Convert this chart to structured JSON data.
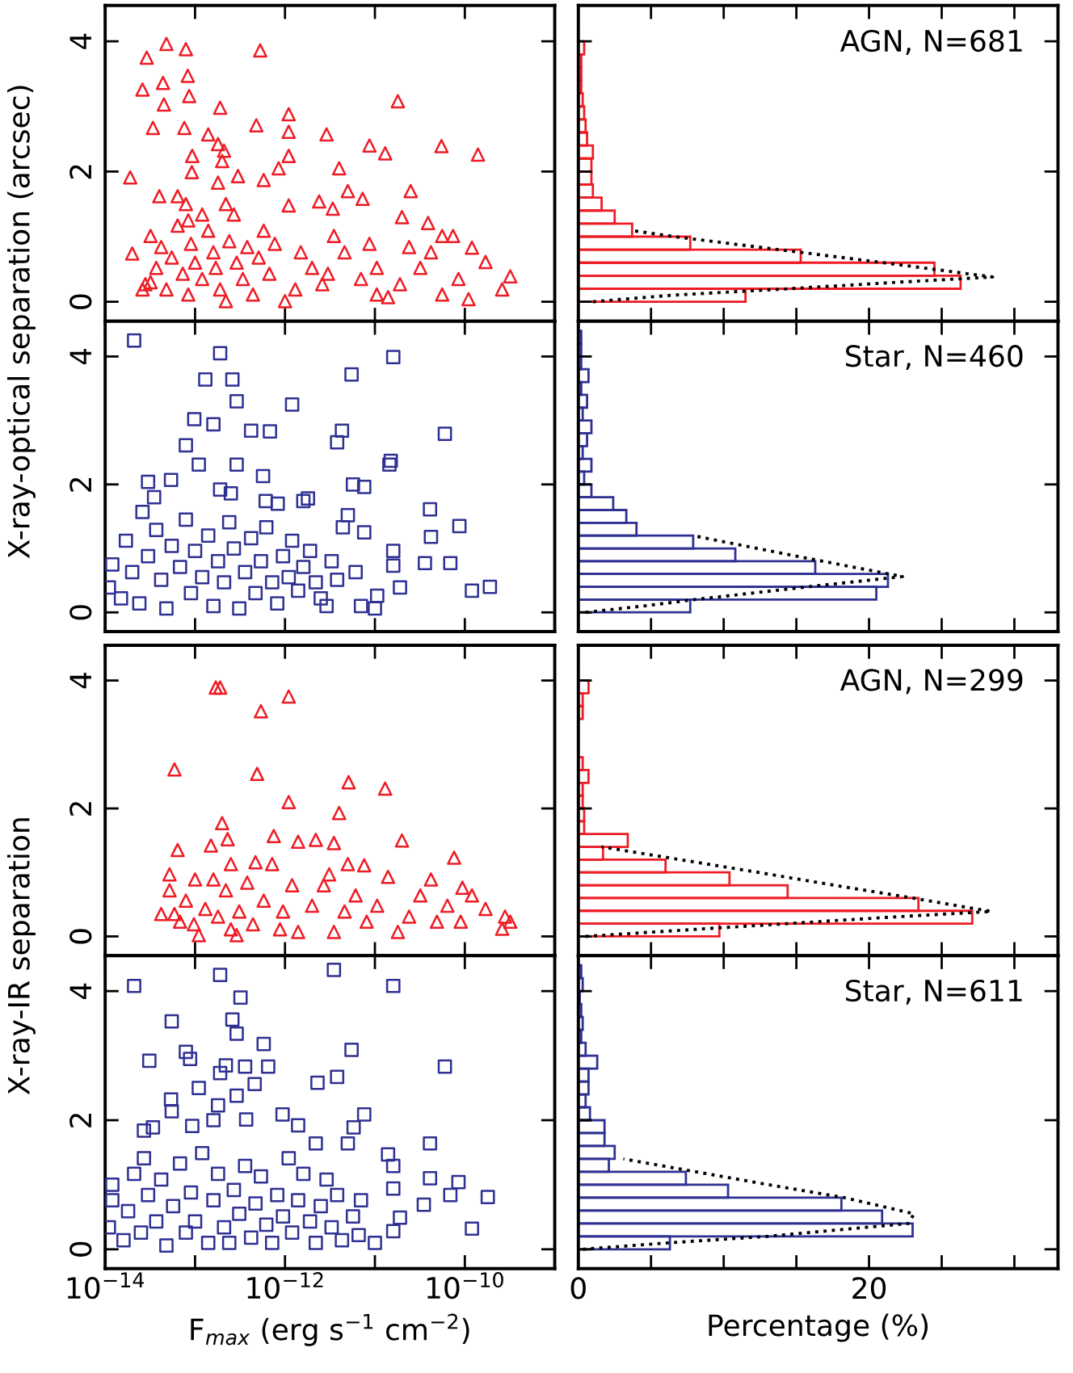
{
  "chart_data": [
    {
      "type": "scatter",
      "log": "x",
      "marker": "triangle",
      "color": "#ee1c25",
      "ylabel": "X-ray-optical separation (arcsec)",
      "tick_labels": "y",
      "xlim": [
        1e-14,
        1e-09
      ],
      "xticks": [
        {
          "value": 1e-14,
          "label": null
        },
        {
          "value": 1e-13,
          "label": null
        },
        {
          "value": 1e-12,
          "label": null
        },
        {
          "value": 1e-11,
          "label": null
        },
        {
          "value": 1e-10,
          "label": null
        },
        {
          "value": 1e-09,
          "label": null
        }
      ],
      "ylim": [
        -0.3,
        4.55
      ],
      "yticks": [
        0,
        2,
        4
      ],
      "x": [
        1.9e-14,
        2e-14,
        2.9e-14,
        2.6e-14,
        3.4e-14,
        4.4e-14,
        4.8e-14,
        4.5e-14,
        7.9e-14,
        8.3e-14,
        8.6e-14,
        7.6e-14,
        9.3e-14,
        9.2e-14,
        4e-14,
        1.4e-13,
        1.9e-13,
        1.8e-13,
        2.1e-13,
        2e-13,
        1.8e-13,
        3e-13,
        4.8e-13,
        5.3e-13,
        5.8e-13,
        8.5e-13,
        1.1e-12,
        1.1e-12,
        1.1e-12,
        1.1e-12,
        2.9e-12,
        4e-12,
        5e-12,
        7.3e-12,
        8.7e-12,
        1.3e-11,
        1.8e-11,
        2.5e-11,
        5.5e-11,
        1.4e-10,
        2.4e-12,
        3.4e-12,
        2e-11,
        3.9e-11,
        1.7e-10,
        3.2e-10,
        2.6e-10,
        1.1e-10,
        1.2e-10,
        7.4e-11,
        5.6e-11,
        8.5e-11,
        5.6e-11,
        4.2e-11,
        3.2e-11,
        2.4e-11,
        1.9e-11,
        1.4e-11,
        1.05e-11,
        8.7e-12,
        1.05e-11,
        7e-12,
        4.6e-12,
        3.5e-12,
        3e-12,
        2.6e-12,
        2e-12,
        1.5e-12,
        1.3e-12,
        1e-12,
        2.8e-14,
        3.2e-14,
        3.7e-14,
        4.2e-14,
        4.8e-14,
        5.5e-14,
        6.4e-14,
        7.3e-14,
        8.4e-14,
        9e-14,
        1e-13,
        1.2e-13,
        1.4e-13,
        1.6e-13,
        1.7e-13,
        1.9e-13,
        2.2e-13,
        2.4e-13,
        2.7e-13,
        2.9e-13,
        3.4e-13,
        3.8e-13,
        4.4e-13,
        5.1e-13,
        5.8e-13,
        6.7e-13,
        7.7e-13,
        2.2e-13,
        1.2e-13,
        7.9e-14,
        6.4e-14,
        8.4e-14,
        3.2e-14,
        2.6e-14
      ],
      "values": [
        1.91,
        0.74,
        3.75,
        3.26,
        2.67,
        3.36,
        3.96,
        3.03,
        3.88,
        3.47,
        3.16,
        2.67,
        2.24,
        1.99,
        1.62,
        2.57,
        2.98,
        2.42,
        2.32,
        2.16,
        1.83,
        1.93,
        2.71,
        3.86,
        1.87,
        2.05,
        2.24,
        2.61,
        2.88,
        1.48,
        2.57,
        2.05,
        1.7,
        1.58,
        2.4,
        2.28,
        3.08,
        1.7,
        2.39,
        2.26,
        1.54,
        1.43,
        1.3,
        1.21,
        0.61,
        0.39,
        0.19,
        0.04,
        0.83,
        1.01,
        1.01,
        0.35,
        0.11,
        0.76,
        0.52,
        0.84,
        0.27,
        0.07,
        0.11,
        0.89,
        0.52,
        0.35,
        0.76,
        1.01,
        0.43,
        0.27,
        0.52,
        0.76,
        0.19,
        0.01,
        0.27,
        1.01,
        0.52,
        0.84,
        0.19,
        0.68,
        1.17,
        0.43,
        0.11,
        0.89,
        0.6,
        0.35,
        1.09,
        0.76,
        0.52,
        0.19,
        0.01,
        0.93,
        1.34,
        0.6,
        0.35,
        0.84,
        0.11,
        0.68,
        1.09,
        0.43,
        0.89,
        1.5,
        1.34,
        1.5,
        1.62,
        1.25,
        0.3,
        0.19
      ]
    },
    {
      "type": "histogram",
      "orientation": "horizontal",
      "color": "#ee1c25",
      "tick_labels": false,
      "annotations": [
        "AGN, N=681"
      ],
      "xlim": [
        0,
        33
      ],
      "xticks": [
        {
          "value": 0,
          "label": null
        },
        {
          "value": 5,
          "label": null
        },
        {
          "value": 10,
          "label": null
        },
        {
          "value": 15,
          "label": null
        },
        {
          "value": 20,
          "label": null
        },
        {
          "value": 25,
          "label": null
        },
        {
          "value": 30,
          "label": null
        }
      ],
      "ylim": [
        -0.3,
        4.55
      ],
      "yticks": [
        {
          "value": 0,
          "label": null
        },
        {
          "value": 2,
          "label": null
        },
        {
          "value": 4,
          "label": null
        }
      ],
      "bins": [
        0,
        0.2,
        0.4,
        0.6,
        0.8,
        1.0,
        1.2,
        1.4,
        1.6,
        1.8,
        2.0,
        2.2,
        2.4,
        2.6,
        2.8,
        3.0,
        3.2,
        3.4,
        3.6,
        3.8,
        4.0
      ],
      "values": [
        11.5,
        26.3,
        24.5,
        15.3,
        7.7,
        3.7,
        2.5,
        1.6,
        1.0,
        0.9,
        0.9,
        1.0,
        0.6,
        0.5,
        0.4,
        0.3,
        0.2,
        0.2,
        0.2,
        0.4
      ],
      "series": [
        {
          "type": "line",
          "color": "#000000",
          "line_style": "dotted",
          "x": [
            0,
            0.1,
            0.2,
            0.3,
            0.38,
            0.6,
            0.8,
            1.0,
            1.09
          ],
          "values": [
            1,
            6.4,
            14.5,
            22,
            28.5,
            21,
            13.8,
            6.6,
            3.8
          ]
        }
      ]
    },
    {
      "type": "scatter",
      "log": "x",
      "marker": "square",
      "color": "#2e3192",
      "tick_labels": "y",
      "xlim": [
        1e-14,
        1e-09
      ],
      "xticks": [
        {
          "value": 1e-14,
          "label": null
        },
        {
          "value": 1e-13,
          "label": null
        },
        {
          "value": 1e-12,
          "label": null
        },
        {
          "value": 1e-11,
          "label": null
        },
        {
          "value": 1e-10,
          "label": null
        },
        {
          "value": 1e-09,
          "label": null
        }
      ],
      "ylim": [
        -0.3,
        4.55
      ],
      "yticks": [
        0,
        2,
        4
      ],
      "x": [
        2.1e-14,
        1.9e-13,
        2.6e-13,
        1.3e-13,
        2.9e-13,
        1.2e-12,
        9.8e-14,
        1.6e-13,
        4.2e-13,
        6.8e-13,
        7.9e-14,
        1.1e-13,
        2.9e-13,
        5.7e-13,
        5.4e-14,
        1.9e-13,
        2.5e-13,
        6.1e-13,
        8.3e-13,
        1.6e-12,
        5.5e-12,
        3.8e-12,
        4.3e-12,
        1.6e-11,
        1.45e-11,
        1.5e-11,
        5.7e-12,
        7.6e-12,
        6e-11,
        4.1e-11,
        8.7e-11,
        4.2e-11,
        6.9e-11,
        3.6e-11,
        1.9e-10,
        1.2e-10,
        1.6e-11,
        1.6e-11,
        1.9e-11,
        1.06e-11,
        7.6e-12,
        5e-12,
        4.4e-12,
        1.8e-12,
        3e-14,
        2.6e-14,
        3.5e-14,
        1.1e-14,
        1.2e-14,
        1.5e-14,
        1.7e-14,
        2e-14,
        2.4e-14,
        3e-14,
        3.7e-14,
        4.2e-14,
        4.8e-14,
        5.5e-14,
        6.8e-14,
        7.9e-14,
        9e-14,
        1e-13,
        1.2e-13,
        1.4e-13,
        1.6e-13,
        1.8e-13,
        2.1e-13,
        2.4e-13,
        2.7e-13,
        3.1e-13,
        3.6e-13,
        4.2e-13,
        4.7e-13,
        5.4e-13,
        6.2e-13,
        7.2e-13,
        8.2e-13,
        9.5e-13,
        1.1e-12,
        1.2e-12,
        1.4e-12,
        1.6e-12,
        1.9e-12,
        2.2e-12,
        2.5e-12,
        2.9e-12,
        3.3e-12,
        3.8e-12,
        6.1e-12,
        7e-12,
        1e-11
      ],
      "values": [
        4.25,
        4.05,
        3.64,
        3.64,
        3.3,
        3.25,
        3.02,
        2.94,
        2.84,
        2.83,
        2.61,
        2.31,
        2.31,
        2.13,
        2.07,
        1.92,
        1.86,
        1.74,
        1.7,
        1.74,
        3.72,
        2.66,
        2.84,
        3.99,
        2.31,
        2.37,
        2.0,
        1.96,
        2.79,
        1.61,
        1.35,
        1.18,
        0.77,
        0.77,
        0.4,
        0.34,
        0.96,
        0.73,
        0.39,
        0.26,
        1.25,
        1.52,
        1.33,
        1.78,
        2.04,
        1.57,
        1.8,
        0.39,
        0.75,
        0.22,
        1.12,
        0.63,
        0.14,
        0.88,
        1.29,
        0.51,
        0.06,
        1.04,
        0.71,
        1.45,
        0.3,
        0.96,
        0.55,
        1.2,
        0.1,
        0.8,
        0.47,
        1.41,
        1.0,
        0.06,
        0.63,
        1.16,
        0.3,
        0.8,
        1.33,
        0.47,
        0.14,
        0.88,
        0.55,
        1.12,
        0.34,
        0.71,
        0.96,
        0.47,
        0.22,
        0.1,
        0.8,
        0.51,
        0.63,
        0.1,
        0.06
      ]
    },
    {
      "type": "histogram",
      "orientation": "horizontal",
      "color": "#2e3192",
      "tick_labels": false,
      "annotations": [
        "Star, N=460"
      ],
      "xlim": [
        0,
        33
      ],
      "xticks": [
        {
          "value": 0,
          "label": null
        },
        {
          "value": 5,
          "label": null
        },
        {
          "value": 10,
          "label": null
        },
        {
          "value": 15,
          "label": null
        },
        {
          "value": 20,
          "label": null
        },
        {
          "value": 25,
          "label": null
        },
        {
          "value": 30,
          "label": null
        }
      ],
      "ylim": [
        -0.3,
        4.55
      ],
      "yticks": [
        {
          "value": 0,
          "label": null
        },
        {
          "value": 2,
          "label": null
        },
        {
          "value": 4,
          "label": null
        }
      ],
      "bins": [
        0,
        0.2,
        0.4,
        0.6,
        0.8,
        1.0,
        1.2,
        1.4,
        1.6,
        1.8,
        2.0,
        2.2,
        2.4,
        2.6,
        2.8,
        3.0,
        3.2,
        3.4,
        3.6,
        3.8,
        4.0,
        4.2,
        4.4
      ],
      "values": [
        7.7,
        20.5,
        21.3,
        16.3,
        10.8,
        7.9,
        4.0,
        3.3,
        2.4,
        0.9,
        0.4,
        0.9,
        0.3,
        0.6,
        0.9,
        0.3,
        0.6,
        0.2,
        0.7,
        0.2,
        0.2,
        0.2
      ],
      "series": [
        {
          "type": "line",
          "color": "#000000",
          "line_style": "dotted",
          "x": [
            0,
            0.1,
            0.2,
            0.4,
            0.56,
            0.8,
            1.0,
            1.2
          ],
          "values": [
            0.5,
            4.5,
            8,
            15.8,
            22.3,
            16.8,
            12.3,
            7.9
          ]
        }
      ]
    },
    {
      "type": "scatter",
      "log": "x",
      "marker": "triangle",
      "color": "#ee1c25",
      "ylabel": "X-ray-IR separation",
      "tick_labels": "y",
      "xlim": [
        1e-14,
        1e-09
      ],
      "xticks": [
        {
          "value": 1e-14,
          "label": null
        },
        {
          "value": 1e-13,
          "label": null
        },
        {
          "value": 1e-12,
          "label": null
        },
        {
          "value": 1e-11,
          "label": null
        },
        {
          "value": 1e-10,
          "label": null
        },
        {
          "value": 1e-09,
          "label": null
        }
      ],
      "ylim": [
        -0.3,
        4.55
      ],
      "yticks": [
        0,
        2,
        4
      ],
      "x": [
        1.7e-13,
        1.9e-13,
        5.4e-13,
        1.1e-12,
        5.9e-14,
        4.9e-13,
        1.1e-12,
        5.1e-12,
        1.3e-11,
        4e-12,
        2e-13,
        1.5e-13,
        2.3e-13,
        7.5e-13,
        1.4e-12,
        2.2e-12,
        3.5e-12,
        2e-11,
        7.6e-11,
        7.6e-12,
        6.4e-14,
        5.2e-14,
        4.2e-14,
        5.9e-14,
        5.2e-14,
        2.8e-10,
        3.2e-10,
        2.6e-10,
        1.7e-10,
        1.2e-10,
        9.4e-11,
        9e-11,
        6.4e-11,
        4.9e-11,
        4.2e-11,
        3.2e-11,
        2.4e-11,
        1.8e-11,
        1.4e-11,
        1.06e-11,
        8.1e-12,
        6.1e-12,
        4.6e-12,
        3.5e-12,
        2.7e-12,
        2e-12,
        1.4e-12,
        1.2e-12,
        9.5e-13,
        7.2e-13,
        5.8e-13,
        4.4e-13,
        3.8e-13,
        3.1e-13,
        2.5e-13,
        2.2e-13,
        1.8e-13,
        1.6e-13,
        1.3e-13,
        1e-13,
        9.7e-14,
        7.9e-14,
        6.8e-14,
        1.1e-13,
        2.9e-13,
        8.8e-13,
        3.1e-12,
        5e-12,
        2.5e-13,
        4.7e-13
      ],
      "values": [
        3.89,
        3.89,
        3.52,
        3.75,
        2.61,
        2.54,
        2.1,
        2.41,
        2.31,
        1.93,
        1.77,
        1.42,
        1.52,
        1.57,
        1.48,
        1.51,
        1.46,
        1.5,
        1.23,
        1.11,
        1.35,
        0.97,
        0.35,
        0.35,
        0.72,
        0.31,
        0.23,
        0.12,
        0.43,
        0.64,
        0.76,
        0.23,
        0.48,
        0.23,
        0.89,
        0.64,
        0.31,
        0.07,
        0.93,
        0.48,
        0.23,
        0.64,
        0.39,
        0.07,
        0.8,
        0.48,
        0.07,
        0.8,
        0.39,
        1.13,
        0.56,
        0.19,
        0.84,
        0.39,
        0.11,
        0.72,
        0.31,
        0.89,
        0.43,
        0.89,
        0.19,
        0.56,
        0.23,
        0.02,
        0.02,
        0.11,
        0.97,
        1.13,
        1.13,
        1.16
      ]
    },
    {
      "type": "histogram",
      "orientation": "horizontal",
      "color": "#ee1c25",
      "tick_labels": false,
      "annotations": [
        "AGN, N=299"
      ],
      "xlim": [
        0,
        33
      ],
      "xticks": [
        {
          "value": 0,
          "label": null
        },
        {
          "value": 5,
          "label": null
        },
        {
          "value": 10,
          "label": null
        },
        {
          "value": 15,
          "label": null
        },
        {
          "value": 20,
          "label": null
        },
        {
          "value": 25,
          "label": null
        },
        {
          "value": 30,
          "label": null
        }
      ],
      "ylim": [
        -0.3,
        4.55
      ],
      "yticks": [
        {
          "value": 0,
          "label": null
        },
        {
          "value": 2,
          "label": null
        },
        {
          "value": 4,
          "label": null
        }
      ],
      "bins": [
        0,
        0.2,
        0.4,
        0.6,
        0.8,
        1.0,
        1.2,
        1.4,
        1.6,
        1.8,
        2.0,
        2.2,
        2.4,
        2.6,
        2.8,
        3.0,
        3.2,
        3.4,
        3.6,
        3.8,
        4.0
      ],
      "values": [
        9.7,
        27.1,
        23.4,
        14.4,
        10.4,
        6.0,
        1.7,
        3.4,
        0.4,
        0.4,
        0.3,
        0.3,
        0.7,
        0.3,
        0,
        0,
        0,
        0.3,
        0.3,
        0.7
      ],
      "series": [
        {
          "type": "line",
          "color": "#000000",
          "line_style": "dotted",
          "x": [
            0,
            0.1,
            0.2,
            0.3,
            0.39,
            0.6,
            0.8,
            1.0,
            1.2,
            1.4
          ],
          "values": [
            0.5,
            7.3,
            14.4,
            21.4,
            28.4,
            23,
            17.6,
            12.4,
            7,
            1.6
          ]
        }
      ]
    },
    {
      "type": "scatter",
      "log": "x",
      "marker": "square",
      "color": "#2e3192",
      "xlabel": "F$_{max}$ (erg s$^{−1}$ cm$^{−2}$)",
      "xlim": [
        1e-14,
        1e-09
      ],
      "xticks": [
        {
          "value": 1e-14,
          "label": "10$^{−14}$"
        },
        {
          "value": 1e-13,
          "label": null
        },
        {
          "value": 1e-12,
          "label": "10$^{−12}$"
        },
        {
          "value": 1e-11,
          "label": null
        },
        {
          "value": 1e-10,
          "label": "10$^{−10}$"
        },
        {
          "value": 1e-09,
          "label": null
        }
      ],
      "ylim": [
        -0.3,
        4.55
      ],
      "yticks": [
        0,
        2,
        4
      ],
      "x": [
        2.1e-14,
        1.9e-13,
        3.5e-12,
        1.6e-11,
        3.2e-13,
        5.5e-14,
        2.6e-13,
        2.9e-13,
        5.8e-13,
        7.9e-14,
        8.8e-14,
        3.1e-14,
        1.9e-13,
        2.2e-13,
        3.6e-13,
        6.5e-13,
        5.5e-12,
        3.8e-12,
        2.3e-12,
        6e-11,
        4.6e-13,
        1.1e-13,
        5.4e-14,
        5.5e-14,
        2.9e-13,
        1.8e-13,
        1.6e-13,
        3.7e-13,
        9.4e-13,
        7.6e-12,
        5.8e-12,
        5e-12,
        2.7e-14,
        3.4e-14,
        9.3e-14,
        1.4e-12,
        2.2e-12,
        4.1e-11,
        1.4e-11,
        1.6e-11,
        4.1e-11,
        8.5e-11,
        6.9e-11,
        1.8e-10,
        3.5e-11,
        1.2e-10,
        1.6e-11,
        1.9e-11,
        1.6e-11,
        1e-11,
        7e-12,
        2.7e-14,
        1.2e-14,
        1.1e-14,
        1.2e-14,
        1.6e-14,
        1.8e-14,
        2.1e-14,
        2.5e-14,
        3e-14,
        3.7e-14,
        4.2e-14,
        4.8e-14,
        5.7e-14,
        6.8e-14,
        7.9e-14,
        9e-14,
        1e-13,
        1.2e-13,
        1.4e-13,
        1.6e-13,
        1.8e-13,
        2.1e-13,
        2.4e-13,
        2.7e-13,
        3.1e-13,
        3.6e-13,
        4.2e-13,
        4.7e-13,
        5.4e-13,
        6.2e-13,
        7.2e-13,
        8.2e-13,
        9.5e-13,
        1.1e-12,
        1.2e-12,
        1.4e-12,
        1.6e-12,
        1.9e-12,
        2.2e-12,
        2.5e-12,
        2.9e-12,
        3.3e-12,
        3.8e-12,
        4.3e-12,
        5.7e-12,
        6.6e-12
      ],
      "values": [
        4.08,
        4.25,
        4.33,
        4.08,
        3.9,
        3.53,
        3.56,
        3.34,
        3.18,
        3.06,
        2.95,
        2.92,
        2.73,
        2.85,
        2.83,
        2.83,
        3.09,
        2.67,
        2.58,
        2.83,
        2.56,
        2.5,
        2.32,
        2.14,
        2.38,
        2.23,
        2.0,
        2.01,
        2.09,
        2.09,
        1.89,
        1.64,
        1.84,
        1.89,
        1.91,
        1.92,
        1.64,
        1.64,
        1.47,
        1.29,
        1.1,
        1.04,
        0.84,
        0.81,
        0.69,
        0.32,
        0.94,
        0.49,
        0.28,
        0.1,
        0.76,
        1.41,
        1.0,
        0.34,
        0.76,
        0.14,
        0.59,
        1.17,
        0.26,
        0.84,
        0.43,
        1.08,
        0.06,
        0.67,
        1.33,
        0.26,
        0.88,
        0.43,
        1.49,
        0.1,
        0.76,
        1.17,
        0.34,
        0.1,
        0.92,
        0.55,
        1.29,
        0.18,
        0.71,
        1.13,
        0.38,
        0.1,
        0.84,
        0.51,
        1.41,
        0.26,
        0.76,
        1.17,
        0.43,
        0.1,
        0.67,
        1.08,
        0.34,
        0.84,
        0.14,
        0.51,
        0.22
      ]
    },
    {
      "type": "histogram",
      "orientation": "horizontal",
      "color": "#2e3192",
      "tick_labels": "x",
      "xlabel": "Percentage (%)",
      "annotations": [
        "Star, N=611"
      ],
      "xlim": [
        0,
        33
      ],
      "xticks": [
        0,
        {
          "value": 5,
          "label": null
        },
        {
          "value": 10,
          "label": null
        },
        {
          "value": 15,
          "label": null
        },
        20,
        {
          "value": 25,
          "label": null
        },
        {
          "value": 30,
          "label": null
        }
      ],
      "ylim": [
        -0.3,
        4.55
      ],
      "yticks": [
        {
          "value": 0,
          "label": null
        },
        {
          "value": 2,
          "label": null
        },
        {
          "value": 4,
          "label": null
        }
      ],
      "bins": [
        0,
        0.2,
        0.4,
        0.6,
        0.8,
        1.0,
        1.2,
        1.4,
        1.6,
        1.8,
        2.0,
        2.2,
        2.4,
        2.6,
        2.8,
        3.0,
        3.2,
        3.4,
        3.6,
        3.8,
        4.0,
        4.2,
        4.4
      ],
      "values": [
        6.3,
        23.0,
        20.9,
        18.1,
        10.3,
        7.4,
        2.1,
        2.5,
        1.8,
        1.8,
        0.8,
        0.5,
        0.7,
        0.7,
        1.3,
        0.5,
        0.2,
        0.3,
        0.2,
        0.1,
        0.3,
        0.2
      ],
      "series": [
        {
          "type": "line",
          "color": "#000000",
          "line_style": "dotted",
          "x": [
            0,
            0.1,
            0.2,
            0.4,
            0.55,
            0.8,
            1.0,
            1.2,
            1.4
          ],
          "values": [
            0.3,
            6.2,
            13,
            22.7,
            23.1,
            18.3,
            13.1,
            8.1,
            3.1
          ]
        }
      ]
    }
  ]
}
